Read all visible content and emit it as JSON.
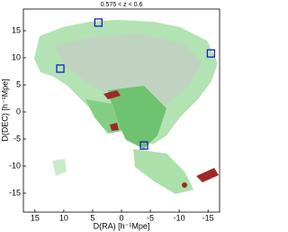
{
  "chart_data": {
    "type": "scatter",
    "title": "0.575 < z < 0.6",
    "x_label": "D(RA) [h⁻¹Mpe]",
    "y_label": "D(DEC) [h⁻¹Mpe]",
    "x": [
      4,
      10.6,
      -15.5,
      -3.9
    ],
    "values": [
      16.5,
      8,
      10.8,
      -6.2
    ],
    "color": "#1a1acc",
    "xlim": [
      17,
      -17
    ],
    "ylim": [
      19,
      -18.5
    ],
    "xticks": [
      15,
      10,
      5,
      0,
      -5,
      -10,
      -15
    ],
    "yticks": [
      15,
      10,
      5,
      0,
      -5,
      -10,
      -15
    ]
  }
}
